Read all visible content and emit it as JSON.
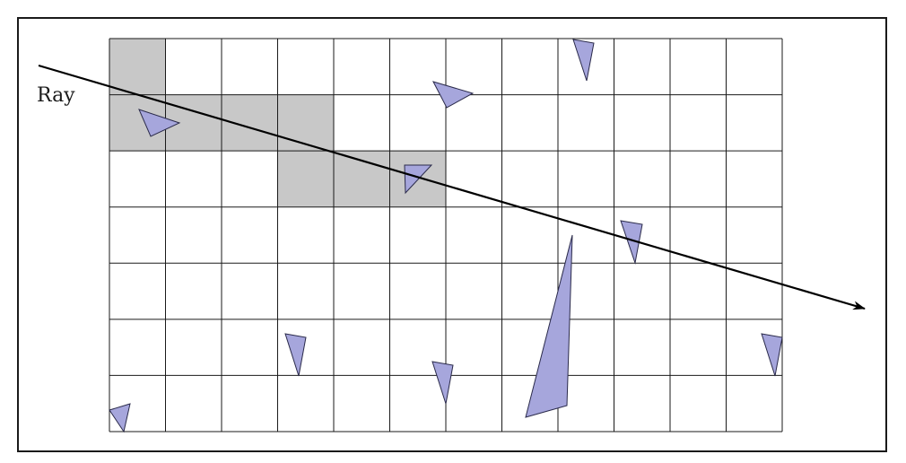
{
  "figure": {
    "ray_label": "Ray"
  },
  "colors": {
    "frame": "#1a1a1a",
    "grid_line": "#1a1a1a",
    "visited_cell": "#c8c8c8",
    "triangle_fill": "#a6a6dc",
    "triangle_stroke": "#2a2a4a",
    "ray": "#000000"
  },
  "grid": {
    "columns": 12,
    "rows": 7,
    "visited_cells": [
      [
        0,
        0
      ],
      [
        0,
        1
      ],
      [
        1,
        1
      ],
      [
        2,
        1
      ],
      [
        3,
        1
      ],
      [
        3,
        2
      ],
      [
        4,
        2
      ],
      [
        5,
        2
      ]
    ]
  }
}
